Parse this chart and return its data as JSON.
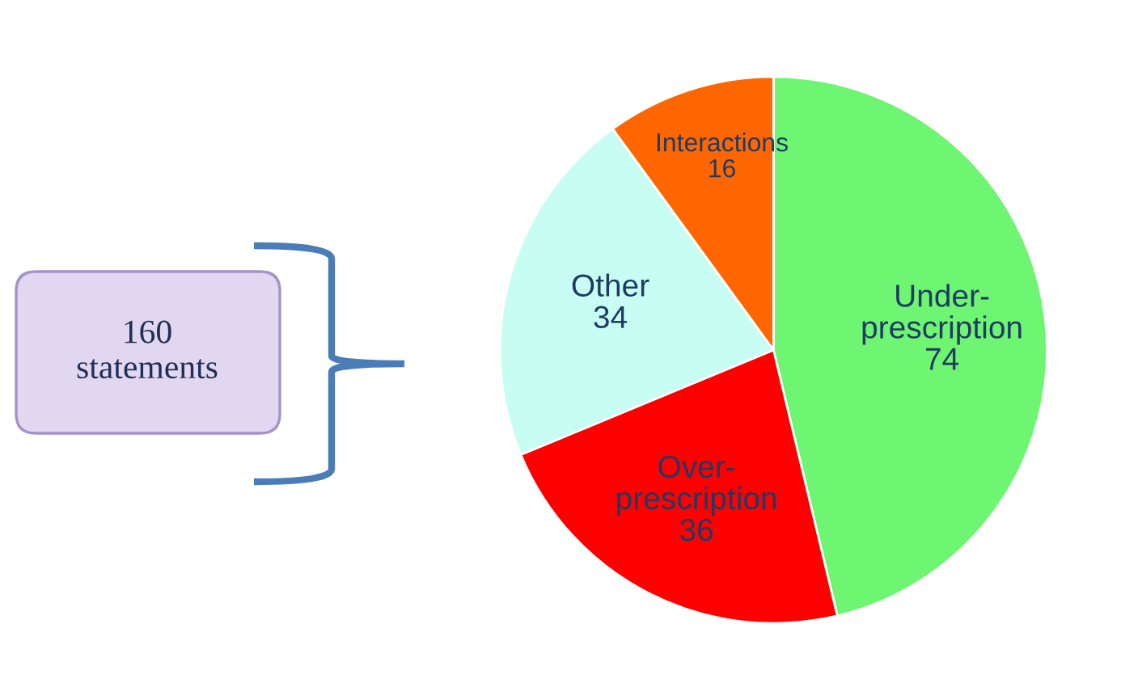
{
  "chart_data": {
    "type": "pie",
    "categories": [
      "Under-\nprescription",
      "Over-\nprescription",
      "Other",
      "Interactions"
    ],
    "values": [
      74,
      36,
      34,
      16
    ],
    "colors": [
      "#6ef572",
      "#ff0000",
      "#c8fdf3",
      "#ff6600"
    ],
    "data_labels": true,
    "annotations": [
      "160\nstatements"
    ]
  }
}
